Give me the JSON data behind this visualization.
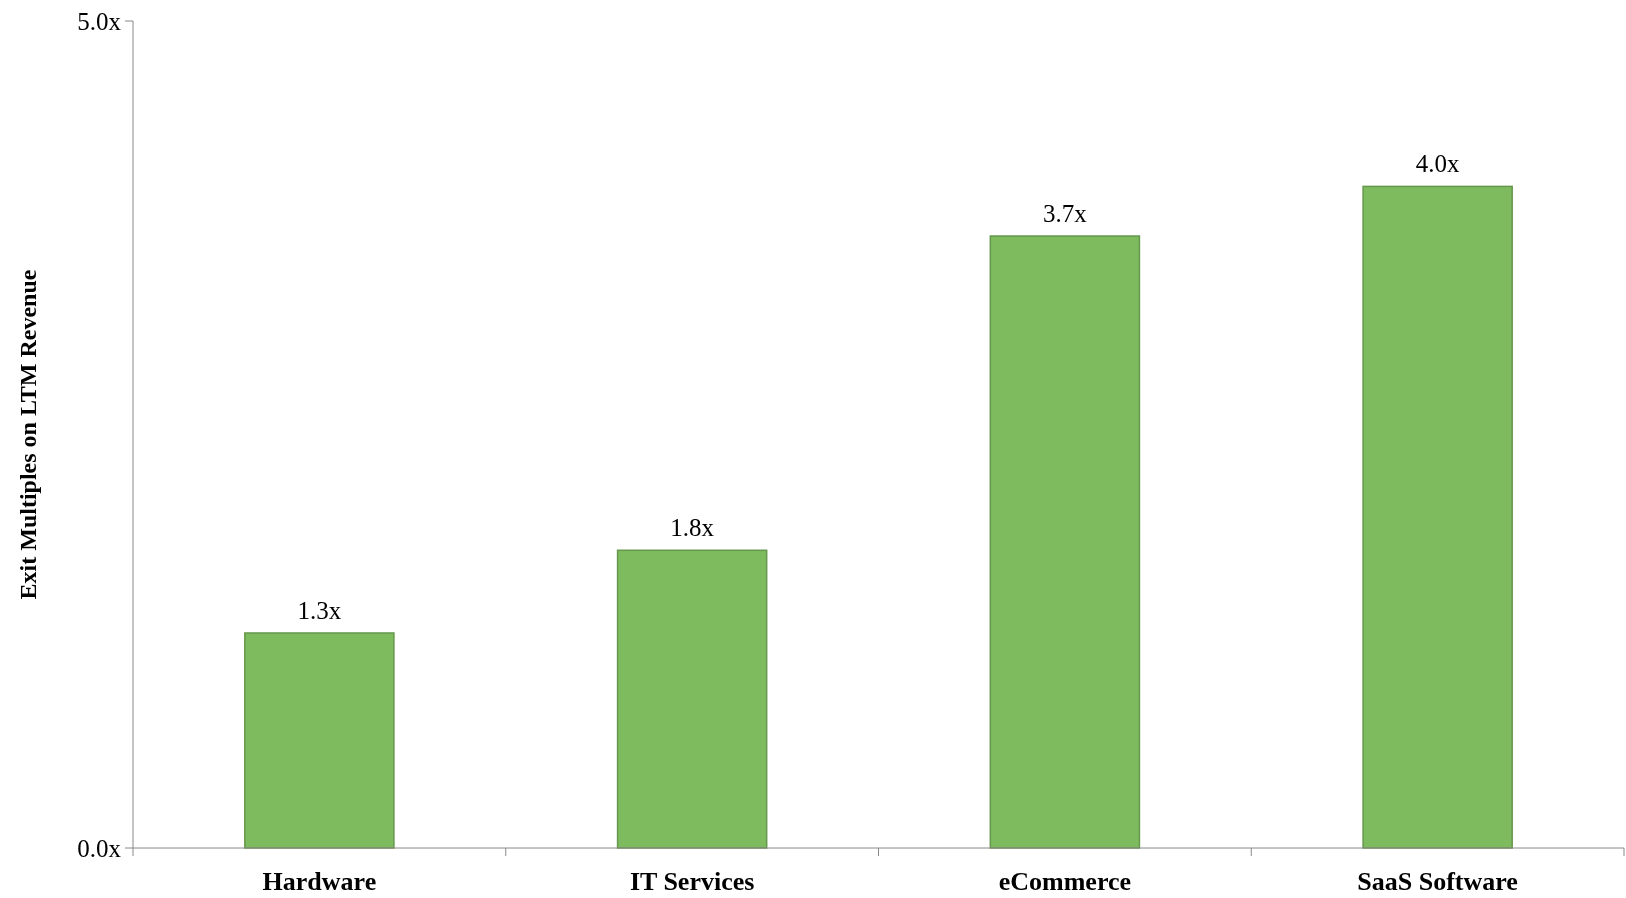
{
  "chart_data": {
    "type": "bar",
    "ylabel": "Exit Multiples on LTM Revenue",
    "categories": [
      "Hardware",
      "IT Services",
      "eCommerce",
      "SaaS Software"
    ],
    "values": [
      1.3,
      1.8,
      3.7,
      4.0
    ],
    "value_labels": [
      "1.3x",
      "1.8x",
      "3.7x",
      "4.0x"
    ],
    "color": "#7dbb5e",
    "ylim": [
      0,
      5
    ],
    "yticks": [
      {
        "value": 0,
        "label": "0.0x"
      },
      {
        "value": 5,
        "label": "5.0x"
      }
    ],
    "grid": false
  }
}
